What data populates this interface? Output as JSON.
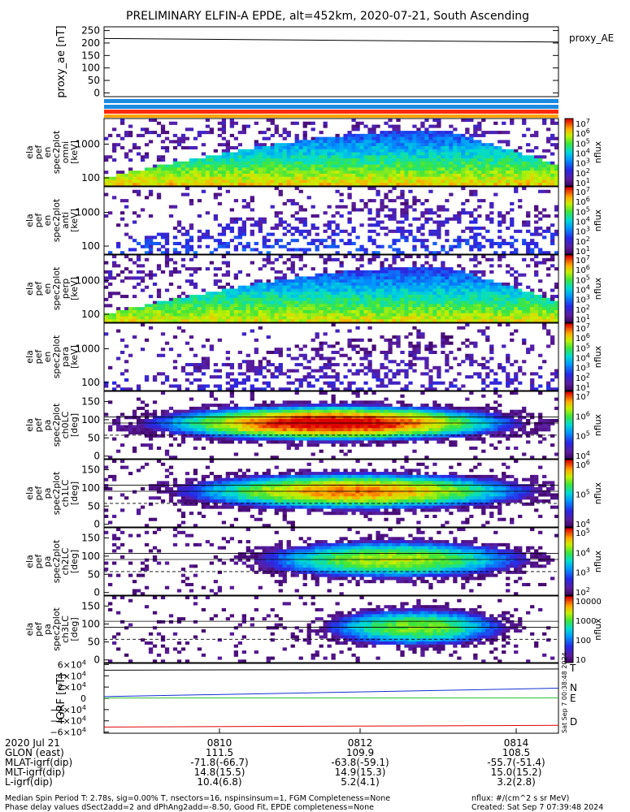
{
  "title": "PRELIMINARY ELFIN-A EPDE, alt=452km, 2020-07-21, South Ascending",
  "chart_data": [
    {
      "type": "line",
      "ylabel": "proxy_ae [nT]",
      "legend": "proxy_AE",
      "yticks": [
        "250",
        "200",
        "150",
        "100",
        "50",
        "0"
      ],
      "ylim": [
        -15,
        265
      ],
      "series": [
        {
          "name": "proxy_AE",
          "x": [
            0,
            1
          ],
          "values": [
            218,
            204
          ]
        }
      ]
    },
    {
      "type": "heatmap",
      "ylabel": [
        "ela",
        "pef",
        "en",
        "spec2plot",
        "omni",
        "[keV]"
      ],
      "yticks": [
        "1000",
        "100"
      ],
      "colorbar": {
        "label": "nflux",
        "ticks": [
          "10^7",
          "10^6",
          "10^5",
          "10^4",
          "10^3",
          "10^2",
          "10^1"
        ]
      }
    },
    {
      "type": "heatmap",
      "ylabel": [
        "ela",
        "pef",
        "en",
        "spec2plot",
        "anti",
        "[keV]"
      ],
      "yticks": [
        "1000",
        "100"
      ],
      "colorbar": {
        "label": "nflux",
        "ticks": [
          "10^7",
          "10^6",
          "10^5",
          "10^4",
          "10^3",
          "10^2",
          "10^1"
        ]
      }
    },
    {
      "type": "heatmap",
      "ylabel": [
        "ela",
        "pef",
        "en",
        "spec2plot",
        "perp",
        "[keV]"
      ],
      "yticks": [
        "1000",
        "100"
      ],
      "colorbar": {
        "label": "nflux",
        "ticks": [
          "10^7",
          "10^6",
          "10^5",
          "10^4",
          "10^3",
          "10^2",
          "10^1"
        ]
      }
    },
    {
      "type": "heatmap",
      "ylabel": [
        "ela",
        "pef",
        "en",
        "spec2plot",
        "para",
        "[keV]"
      ],
      "yticks": [
        "1000",
        "100"
      ],
      "colorbar": {
        "label": "nflux",
        "ticks": [
          "10^7",
          "10^6",
          "10^5",
          "10^4",
          "10^3",
          "10^2",
          "10^1"
        ]
      }
    },
    {
      "type": "heatmap",
      "ylabel": [
        "ela",
        "pef",
        "pa",
        "spec2plot",
        "ch0LC",
        "[deg]"
      ],
      "yticks": [
        "150",
        "100",
        "50",
        "0"
      ],
      "colorbar": {
        "label": "nflux",
        "ticks": [
          "10^7",
          "10^6",
          "10^5",
          "10^4"
        ]
      }
    },
    {
      "type": "heatmap",
      "ylabel": [
        "ela",
        "pef",
        "pa",
        "spec2plot",
        "ch1LC",
        "[deg]"
      ],
      "yticks": [
        "150",
        "100",
        "50",
        "0"
      ],
      "colorbar": {
        "label": "nflux",
        "ticks": [
          "10^6",
          "10^5",
          "10^4"
        ]
      }
    },
    {
      "type": "heatmap",
      "ylabel": [
        "ela",
        "pef",
        "pa",
        "spec2plot",
        "ch2LC",
        "[deg]"
      ],
      "yticks": [
        "150",
        "100",
        "50",
        "0"
      ],
      "colorbar": {
        "label": "nflux",
        "ticks": [
          "10^5",
          "10^4",
          "10^3",
          "10^2"
        ]
      }
    },
    {
      "type": "heatmap",
      "ylabel": [
        "ela",
        "pef",
        "pa",
        "spec2plot",
        "ch3LC",
        "[deg]"
      ],
      "yticks": [
        "150",
        "100",
        "50",
        "0"
      ],
      "colorbar": {
        "label": "nflux",
        "ticks": [
          "10000",
          "1000",
          "100",
          "10"
        ]
      }
    },
    {
      "type": "line",
      "ylabel": "IGRF [nT]",
      "yticks": [
        "6×10^4",
        "4×10^4",
        "2×10^4",
        "0",
        "−2×10^4",
        "−4×10^4",
        "−6×10^4"
      ],
      "ylim": [
        -62000,
        62000
      ],
      "legend": [
        "T",
        "N",
        "E",
        "D"
      ],
      "series": [
        {
          "name": "T",
          "x": [
            0,
            1
          ],
          "values": [
            50000,
            52000
          ]
        },
        {
          "name": "N",
          "x": [
            0,
            1
          ],
          "values": [
            3000,
            18000
          ]
        },
        {
          "name": "E",
          "x": [
            0,
            1
          ],
          "values": [
            600,
            800
          ]
        },
        {
          "name": "D",
          "x": [
            0,
            1
          ],
          "values": [
            -51000,
            -48000
          ]
        }
      ]
    }
  ],
  "colors": {
    "T": "#000000",
    "N": "#1030d0",
    "E": "#30c030",
    "D": "#e00000"
  },
  "side_label": "Sat Sep 7 00:38:48 2024",
  "ephemeris": {
    "rows": [
      {
        "label": "2020 Jul 21",
        "values": [
          "0810",
          "0812",
          "0814"
        ]
      },
      {
        "label": "GLON (east)",
        "values": [
          "111.5",
          "109.9",
          "108.5"
        ]
      },
      {
        "label": "MLAT-igrf(dip)",
        "values": [
          "-71.8(-66.7)",
          "-63.8(-59.1)",
          "-55.7(-51.4)"
        ]
      },
      {
        "label": "MLT-igrf(dip)",
        "values": [
          "14.8(15.5)",
          "14.9(15.3)",
          "15.0(15.2)"
        ]
      },
      {
        "label": "L-igrf(dip)",
        "values": [
          "10.4(6.8)",
          "5.2(4.1)",
          "3.2(2.8)"
        ]
      }
    ]
  },
  "footer": {
    "line1": "Median Spin Period T: 2.78s, sig=0.00% T, nsectors=16, nspinsinsum=1, FGM Completeness=None",
    "line2": "Phase delay values dSect2add=2 and dPhAng2add=-8.50, Good Fit, EPDE completeness=None",
    "units": "nflux: #/(cm^2 s sr MeV)",
    "created": "Created: Sat Sep  7 07:39:48 2024"
  }
}
